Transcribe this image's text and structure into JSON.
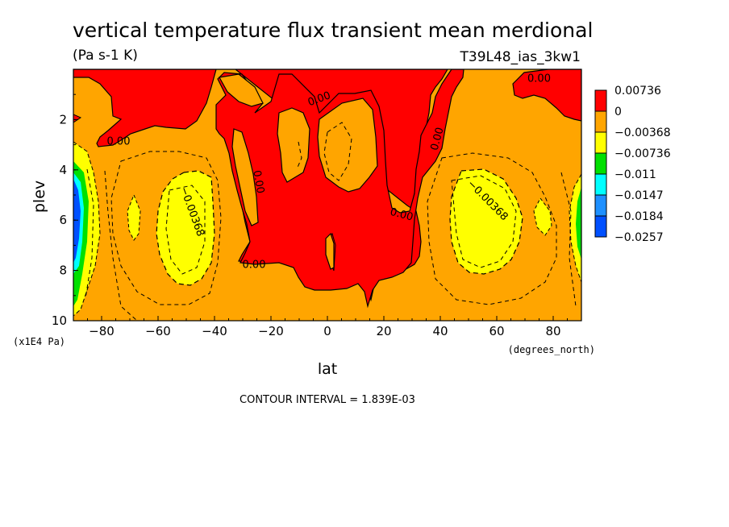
{
  "chart_data": {
    "type": "heatmap",
    "title": "vertical temperature flux transient mean merdional",
    "units": "(Pa s-1 K)",
    "run_label": "T39L48_ias_3kw1",
    "xlabel": "lat",
    "xunits": "(degrees_north)",
    "ylabel": "plev",
    "yunits": "(x1E4 Pa)",
    "xlim": [
      -90,
      90
    ],
    "ylim": [
      10,
      0
    ],
    "x_ticks": [
      -80,
      -60,
      -40,
      -20,
      0,
      20,
      40,
      60,
      80
    ],
    "y_ticks": [
      2,
      4,
      6,
      8,
      10
    ],
    "contour_interval_text": "CONTOUR INTERVAL = 1.839E-03",
    "contour_labels": [
      "0.00",
      "0.00",
      "0.00",
      "0.00",
      "0.00",
      "0.00",
      "-0.00368",
      "-0.00368",
      "0.00"
    ],
    "legend": {
      "placement": "right",
      "levels": [
        {
          "label": "0.00736",
          "color": "#ff0000"
        },
        {
          "label": "0",
          "color": "#ffa500"
        },
        {
          "label": "-0.00368",
          "color": "#ffff00"
        },
        {
          "label": "-0.00736",
          "color": "#00e000"
        },
        {
          "label": "-0.011",
          "color": "#00ffff"
        },
        {
          "label": "-0.0147",
          "color": "#1e90ff"
        },
        {
          "label": "-0.0184",
          "color": "#0050ff"
        },
        {
          "label": "-0.0257",
          "color": ""
        }
      ]
    },
    "colors": {
      "positive": "#ff0000",
      "zero_band": "#ffa500",
      "yellow": "#ffff00",
      "green": "#00e000",
      "cyan": "#00ffff",
      "blue": "#0050ff"
    }
  }
}
